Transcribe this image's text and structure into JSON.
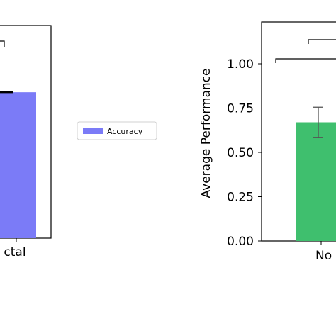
{
  "chart_data": [
    {
      "type": "bar",
      "categories": [
        "ctal"
      ],
      "series": [
        {
          "name": "Accuracy",
          "values": [
            0.83
          ],
          "color": "#7b7bf7"
        }
      ],
      "error_bar_cap": true,
      "significance_brackets": 1,
      "legend": {
        "position": "between-panels",
        "label": "Accuracy",
        "swatch_color": "#7b7bf7"
      },
      "grid": false
    },
    {
      "type": "bar",
      "categories": [
        "No"
      ],
      "values": [
        0.67
      ],
      "errors": [
        0.085
      ],
      "color": "#3fbf6e",
      "ylabel": "Average Performance",
      "ylim": [
        0,
        1.2
      ],
      "yticks": [
        "0.00",
        "0.25",
        "0.50",
        "0.75",
        "1.00"
      ],
      "significance_brackets": 2,
      "grid": false
    }
  ]
}
